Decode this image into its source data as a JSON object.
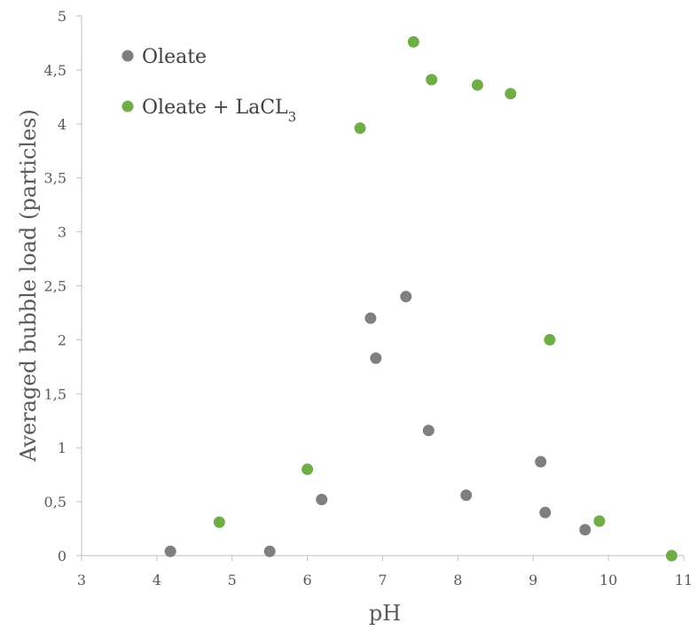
{
  "chart_data": {
    "type": "scatter",
    "xlabel": "pH",
    "ylabel": "Averaged bubble load (particles)",
    "xlim": [
      3,
      11
    ],
    "ylim": [
      0,
      5
    ],
    "x_ticks": [
      "3",
      "4",
      "5",
      "6",
      "7",
      "8",
      "9",
      "10",
      "11"
    ],
    "y_ticks": [
      "0",
      "0,5",
      "1",
      "1,5",
      "2",
      "2,5",
      "3",
      "3,5",
      "4",
      "4,5",
      "5"
    ],
    "grid": false,
    "legend": "top-left",
    "series": [
      {
        "name": "Oleate",
        "color": "#7f7f7f",
        "points": [
          {
            "x": 4.18,
            "y": 0.04
          },
          {
            "x": 5.5,
            "y": 0.04
          },
          {
            "x": 6.19,
            "y": 0.52
          },
          {
            "x": 6.84,
            "y": 2.2
          },
          {
            "x": 6.91,
            "y": 1.83
          },
          {
            "x": 7.31,
            "y": 2.4
          },
          {
            "x": 7.61,
            "y": 1.16
          },
          {
            "x": 8.11,
            "y": 0.56
          },
          {
            "x": 9.1,
            "y": 0.87
          },
          {
            "x": 9.16,
            "y": 0.4
          },
          {
            "x": 9.69,
            "y": 0.24
          }
        ]
      },
      {
        "name": "Oleate + LaCL",
        "name_subscript": "3",
        "color": "#70ad47",
        "points": [
          {
            "x": 4.83,
            "y": 0.31
          },
          {
            "x": 6.0,
            "y": 0.8
          },
          {
            "x": 6.7,
            "y": 3.96
          },
          {
            "x": 7.41,
            "y": 4.76
          },
          {
            "x": 7.65,
            "y": 4.41
          },
          {
            "x": 8.26,
            "y": 4.36
          },
          {
            "x": 8.7,
            "y": 4.28
          },
          {
            "x": 9.22,
            "y": 2.0
          },
          {
            "x": 9.88,
            "y": 0.32
          },
          {
            "x": 10.84,
            "y": 0.0
          }
        ]
      }
    ]
  }
}
